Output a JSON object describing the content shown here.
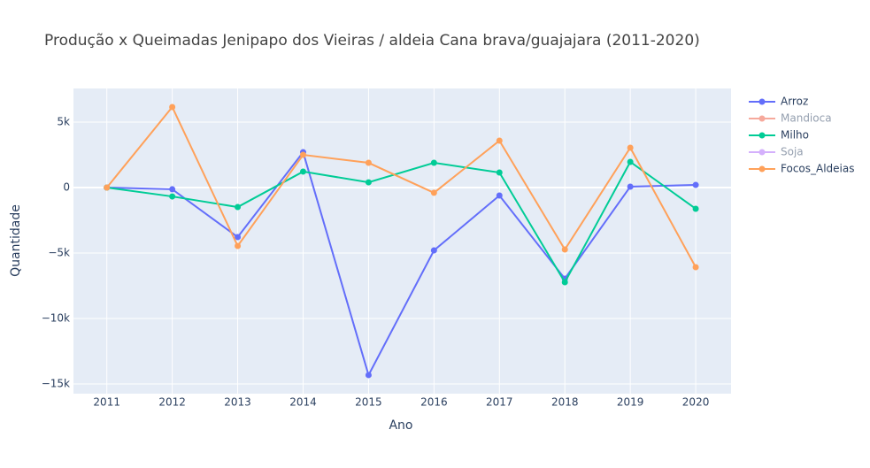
{
  "chart_data": {
    "type": "line",
    "title": "Produção x Queimadas Jenipapo dos Vieiras / aldeia Cana brava/guajajara  (2011-2020)",
    "xlabel": "Ano",
    "ylabel": "Quantidade",
    "x": [
      2011,
      2012,
      2013,
      2014,
      2015,
      2016,
      2017,
      2018,
      2019,
      2020
    ],
    "series": [
      {
        "name": "Arroz",
        "color": "#636efa",
        "values": [
          0,
          -130,
          -3780,
          2700,
          -14320,
          -4800,
          -610,
          -6960,
          70,
          200
        ]
      },
      {
        "name": "Mandioca",
        "color": "#EF553B",
        "visible": "legendonly"
      },
      {
        "name": "Milho",
        "color": "#00cc96",
        "values": [
          0,
          -680,
          -1490,
          1220,
          400,
          1890,
          1150,
          -7230,
          1960,
          -1620
        ]
      },
      {
        "name": "Soja",
        "color": "#ab63fa",
        "visible": "legendonly"
      },
      {
        "name": "Focos_Aldeias",
        "color": "#FFA15A",
        "values": [
          0,
          6150,
          -4460,
          2500,
          1890,
          -400,
          3580,
          -4730,
          3040,
          -6080
        ]
      }
    ],
    "xlim": [
      2010.49,
      2020.54
    ],
    "ylim": [
      -15743,
      7568
    ],
    "xticks": [
      2011,
      2012,
      2013,
      2014,
      2015,
      2016,
      2017,
      2018,
      2019,
      2020
    ],
    "yticks": [
      {
        "value": 5000,
        "label": "5k"
      },
      0,
      {
        "value": -5000,
        "label": "−5k"
      },
      {
        "value": -10000,
        "label": "−10k"
      },
      {
        "value": -15000,
        "label": "−15k"
      }
    ],
    "grid": true,
    "legend": "right"
  }
}
